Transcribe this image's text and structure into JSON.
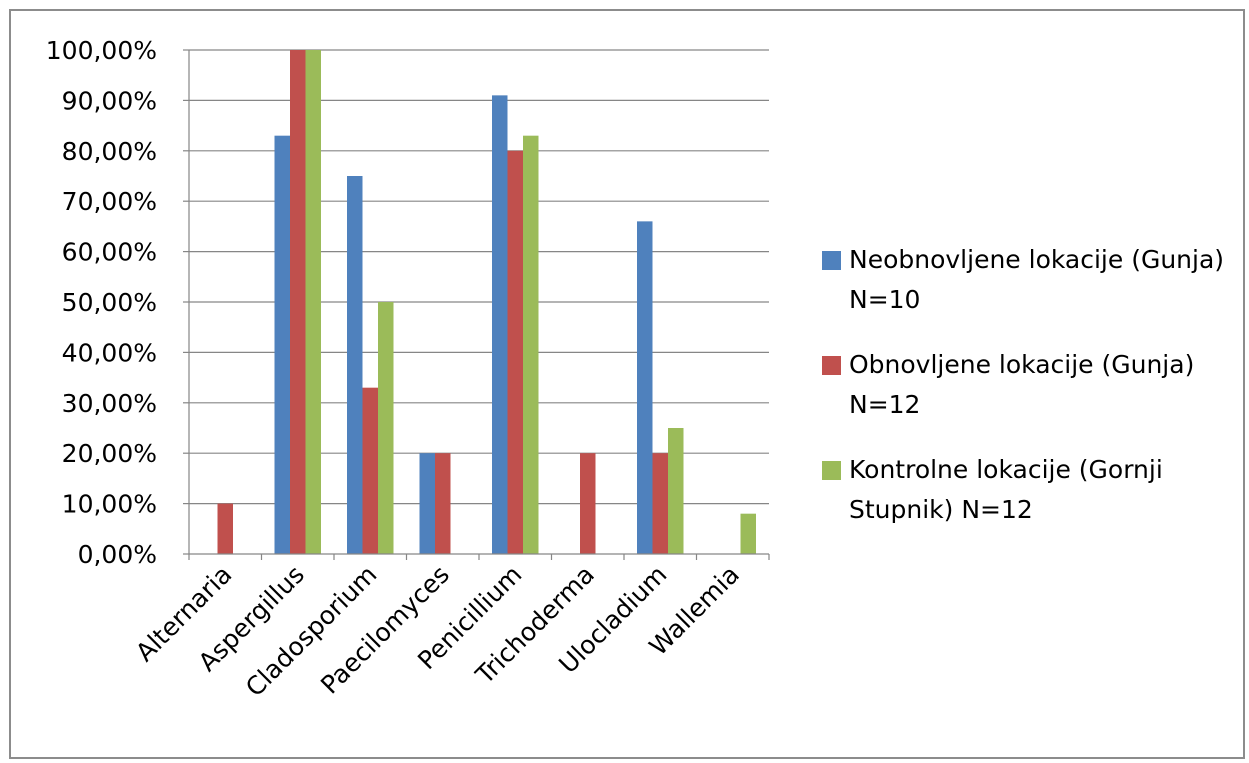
{
  "chart_data": {
    "type": "bar",
    "categories": [
      "Alternaria",
      "Aspergillus",
      "Cladosporium",
      "Paecilomyces",
      "Penicillium",
      "Trichoderma",
      "Ulocladium",
      "Wallemia"
    ],
    "series": [
      {
        "name": "Neobnovljene lokacije (Gunja) N=10",
        "color": "#4f81bd",
        "values": [
          0,
          83,
          75,
          20,
          91,
          0,
          66,
          0
        ]
      },
      {
        "name": "Obnovljene lokacije (Gunja) N=12",
        "color": "#c0504d",
        "values": [
          10,
          100,
          33,
          20,
          80,
          20,
          20,
          0
        ]
      },
      {
        "name": "Kontrolne lokacije (Gornji Stupnik) N=12",
        "color": "#9bbb59",
        "values": [
          0,
          100,
          50,
          0,
          83,
          0,
          25,
          8
        ]
      }
    ],
    "y_ticks": [
      "0,00%",
      "10,00%",
      "20,00%",
      "30,00%",
      "40,00%",
      "50,00%",
      "60,00%",
      "70,00%",
      "80,00%",
      "90,00%",
      "100,00%"
    ],
    "ylim": [
      0,
      100
    ],
    "grid": true,
    "legend_position": "right",
    "title": "",
    "xlabel": "",
    "ylabel": ""
  }
}
